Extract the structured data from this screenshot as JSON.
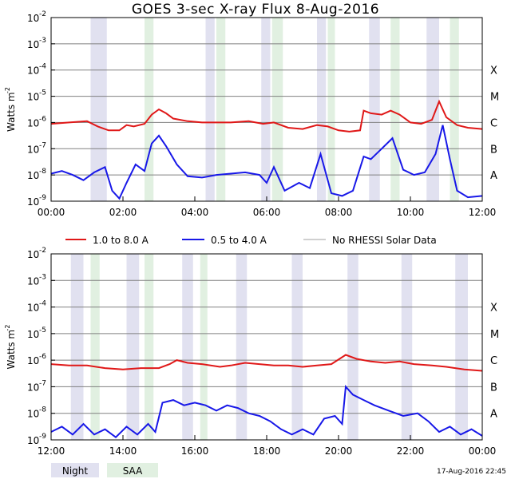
{
  "title": "GOES 3-sec X-ray Flux    8-Aug-2016",
  "timestamp": "17-Aug-2016 22:45",
  "colors": {
    "night": "#e1e1f0",
    "saa": "#e1f0e1",
    "red": "#e01818",
    "blue": "#1818e8",
    "gray": "#a0a0a0"
  },
  "legend": {
    "red": "1.0 to 8.0 A",
    "blue": "0.5 to 4.0 A",
    "gray": "No RHESSI Solar Data",
    "night": "Night",
    "saa": "SAA"
  },
  "chart_data": [
    {
      "type": "line",
      "panel": "top",
      "xlim": [
        0,
        12
      ],
      "ylim_log10": [
        -9,
        -2
      ],
      "ylabel": "Watts m",
      "ylabel_sup": "-2",
      "xticks": [
        "00:00",
        "02:00",
        "04:00",
        "06:00",
        "08:00",
        "10:00",
        "12:00"
      ],
      "yticks": [
        "10",
        "10",
        "10",
        "10",
        "10",
        "10",
        "10",
        "10"
      ],
      "ytick_exp": [
        "-2",
        "-3",
        "-4",
        "-5",
        "-6",
        "-7",
        "-8",
        "-9"
      ],
      "class_labels": [
        "X",
        "M",
        "C",
        "B",
        "A"
      ],
      "night": [
        [
          1.1,
          1.55
        ],
        [
          4.3,
          4.55
        ],
        [
          5.85,
          6.1
        ],
        [
          7.4,
          7.65
        ],
        [
          8.85,
          9.15
        ],
        [
          10.45,
          10.8
        ]
      ],
      "saa": [
        [
          2.6,
          2.85
        ],
        [
          4.6,
          4.85
        ],
        [
          6.15,
          6.45
        ],
        [
          7.7,
          7.9
        ],
        [
          9.45,
          9.7
        ],
        [
          11.1,
          11.35
        ]
      ],
      "long_series": [
        [
          0,
          -6.05
        ],
        [
          0.5,
          -6.0
        ],
        [
          1.0,
          -5.95
        ],
        [
          1.3,
          -6.15
        ],
        [
          1.6,
          -6.3
        ],
        [
          1.9,
          -6.3
        ],
        [
          2.1,
          -6.1
        ],
        [
          2.3,
          -6.15
        ],
        [
          2.6,
          -6.05
        ],
        [
          2.8,
          -5.7
        ],
        [
          3.0,
          -5.5
        ],
        [
          3.2,
          -5.65
        ],
        [
          3.4,
          -5.85
        ],
        [
          3.8,
          -5.95
        ],
        [
          4.2,
          -6.0
        ],
        [
          4.6,
          -6.0
        ],
        [
          5.0,
          -6.0
        ],
        [
          5.5,
          -5.95
        ],
        [
          5.9,
          -6.05
        ],
        [
          6.2,
          -6.0
        ],
        [
          6.6,
          -6.2
        ],
        [
          7.0,
          -6.25
        ],
        [
          7.4,
          -6.1
        ],
        [
          7.7,
          -6.15
        ],
        [
          8.0,
          -6.3
        ],
        [
          8.3,
          -6.35
        ],
        [
          8.6,
          -6.3
        ],
        [
          8.7,
          -5.55
        ],
        [
          8.9,
          -5.65
        ],
        [
          9.2,
          -5.7
        ],
        [
          9.45,
          -5.55
        ],
        [
          9.7,
          -5.7
        ],
        [
          10.0,
          -6.0
        ],
        [
          10.3,
          -6.05
        ],
        [
          10.6,
          -5.9
        ],
        [
          10.8,
          -5.2
        ],
        [
          11.0,
          -5.8
        ],
        [
          11.3,
          -6.1
        ],
        [
          11.6,
          -6.2
        ],
        [
          12.0,
          -6.25
        ]
      ],
      "short_series": [
        [
          0,
          -7.95
        ],
        [
          0.3,
          -7.85
        ],
        [
          0.6,
          -8.0
        ],
        [
          0.9,
          -8.2
        ],
        [
          1.2,
          -7.9
        ],
        [
          1.5,
          -7.7
        ],
        [
          1.7,
          -8.6
        ],
        [
          1.9,
          -8.9
        ],
        [
          2.1,
          -8.3
        ],
        [
          2.35,
          -7.6
        ],
        [
          2.6,
          -7.85
        ],
        [
          2.8,
          -6.8
        ],
        [
          3.0,
          -6.5
        ],
        [
          3.2,
          -6.9
        ],
        [
          3.5,
          -7.6
        ],
        [
          3.8,
          -8.05
        ],
        [
          4.2,
          -8.1
        ],
        [
          4.6,
          -8.0
        ],
        [
          5.0,
          -7.95
        ],
        [
          5.4,
          -7.9
        ],
        [
          5.8,
          -8.0
        ],
        [
          6.0,
          -8.3
        ],
        [
          6.2,
          -7.7
        ],
        [
          6.5,
          -8.6
        ],
        [
          6.9,
          -8.3
        ],
        [
          7.2,
          -8.5
        ],
        [
          7.5,
          -7.2
        ],
        [
          7.8,
          -8.7
        ],
        [
          8.1,
          -8.8
        ],
        [
          8.4,
          -8.6
        ],
        [
          8.7,
          -7.3
        ],
        [
          8.9,
          -7.4
        ],
        [
          9.2,
          -7.0
        ],
        [
          9.5,
          -6.6
        ],
        [
          9.8,
          -7.8
        ],
        [
          10.1,
          -8.0
        ],
        [
          10.4,
          -7.9
        ],
        [
          10.7,
          -7.2
        ],
        [
          10.9,
          -6.1
        ],
        [
          11.1,
          -7.4
        ],
        [
          11.3,
          -8.6
        ],
        [
          11.6,
          -8.85
        ],
        [
          12.0,
          -8.8
        ]
      ]
    },
    {
      "type": "line",
      "panel": "bottom",
      "xlim": [
        12,
        24
      ],
      "ylim_log10": [
        -9,
        -2
      ],
      "ylabel": "Watts m",
      "ylabel_sup": "-2",
      "xticks": [
        "12:00",
        "14:00",
        "16:00",
        "18:00",
        "20:00",
        "22:00",
        "00:00"
      ],
      "yticks": [
        "10",
        "10",
        "10",
        "10",
        "10",
        "10",
        "10",
        "10"
      ],
      "ytick_exp": [
        "-2",
        "-3",
        "-4",
        "-5",
        "-6",
        "-7",
        "-8",
        "-9"
      ],
      "class_labels": [
        "X",
        "M",
        "C",
        "B",
        "A"
      ],
      "night": [
        [
          12.55,
          12.9
        ],
        [
          14.1,
          14.45
        ],
        [
          15.65,
          15.95
        ],
        [
          17.15,
          17.45
        ],
        [
          18.7,
          19.0
        ],
        [
          20.25,
          20.55
        ],
        [
          21.75,
          22.05
        ],
        [
          23.25,
          23.6
        ]
      ],
      "saa": [
        [
          13.1,
          13.35
        ],
        [
          14.6,
          14.85
        ],
        [
          16.15,
          16.35
        ]
      ],
      "long_series": [
        [
          12,
          -6.15
        ],
        [
          12.5,
          -6.2
        ],
        [
          13.0,
          -6.2
        ],
        [
          13.5,
          -6.3
        ],
        [
          14.0,
          -6.35
        ],
        [
          14.5,
          -6.3
        ],
        [
          15.0,
          -6.3
        ],
        [
          15.3,
          -6.15
        ],
        [
          15.5,
          -6.0
        ],
        [
          15.8,
          -6.1
        ],
        [
          16.2,
          -6.15
        ],
        [
          16.7,
          -6.25
        ],
        [
          17.0,
          -6.2
        ],
        [
          17.4,
          -6.1
        ],
        [
          17.8,
          -6.15
        ],
        [
          18.2,
          -6.2
        ],
        [
          18.6,
          -6.2
        ],
        [
          19.0,
          -6.25
        ],
        [
          19.4,
          -6.2
        ],
        [
          19.8,
          -6.15
        ],
        [
          20.2,
          -5.8
        ],
        [
          20.5,
          -5.95
        ],
        [
          20.9,
          -6.05
        ],
        [
          21.3,
          -6.1
        ],
        [
          21.7,
          -6.05
        ],
        [
          22.1,
          -6.15
        ],
        [
          22.6,
          -6.2
        ],
        [
          23.0,
          -6.25
        ],
        [
          23.5,
          -6.35
        ],
        [
          24.0,
          -6.4
        ]
      ],
      "short_series": [
        [
          12,
          -8.7
        ],
        [
          12.3,
          -8.5
        ],
        [
          12.6,
          -8.8
        ],
        [
          12.9,
          -8.4
        ],
        [
          13.2,
          -8.8
        ],
        [
          13.5,
          -8.6
        ],
        [
          13.8,
          -8.9
        ],
        [
          14.1,
          -8.5
        ],
        [
          14.4,
          -8.8
        ],
        [
          14.7,
          -8.4
        ],
        [
          14.9,
          -8.7
        ],
        [
          15.1,
          -7.6
        ],
        [
          15.4,
          -7.5
        ],
        [
          15.7,
          -7.7
        ],
        [
          16.0,
          -7.6
        ],
        [
          16.3,
          -7.7
        ],
        [
          16.6,
          -7.9
        ],
        [
          16.9,
          -7.7
        ],
        [
          17.2,
          -7.8
        ],
        [
          17.5,
          -8.0
        ],
        [
          17.8,
          -8.1
        ],
        [
          18.1,
          -8.3
        ],
        [
          18.4,
          -8.6
        ],
        [
          18.7,
          -8.8
        ],
        [
          19.0,
          -8.6
        ],
        [
          19.3,
          -8.8
        ],
        [
          19.6,
          -8.2
        ],
        [
          19.9,
          -8.1
        ],
        [
          20.1,
          -8.4
        ],
        [
          20.2,
          -7.0
        ],
        [
          20.4,
          -7.3
        ],
        [
          20.7,
          -7.5
        ],
        [
          21.0,
          -7.7
        ],
        [
          21.4,
          -7.9
        ],
        [
          21.8,
          -8.1
        ],
        [
          22.2,
          -8.0
        ],
        [
          22.5,
          -8.3
        ],
        [
          22.8,
          -8.7
        ],
        [
          23.1,
          -8.5
        ],
        [
          23.4,
          -8.8
        ],
        [
          23.7,
          -8.6
        ],
        [
          24.0,
          -8.85
        ]
      ]
    }
  ]
}
